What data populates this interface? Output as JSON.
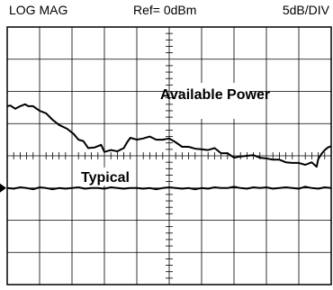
{
  "header": {
    "mode": "LOG MAG",
    "reference": "Ref= 0dBm",
    "scale": "5dB/DIV"
  },
  "chart_data": {
    "type": "line",
    "xlabel": "",
    "ylabel": "",
    "x_divisions": 10,
    "y_divisions": 8,
    "ylim": [
      -40,
      0
    ],
    "y_per_div_db": 5,
    "reference_level_dbm": 0,
    "grid": true,
    "center_crosshair": true,
    "reference_marker": -25,
    "annotations": [
      {
        "text": "Available Power",
        "series": "available"
      },
      {
        "text": "Typical",
        "series": "typical"
      }
    ],
    "series": [
      {
        "id": "available",
        "color": "#000000",
        "x": [
          0,
          0.1,
          0.25,
          0.4,
          0.55,
          0.65,
          0.8,
          1.0,
          1.2,
          1.4,
          1.6,
          1.85,
          2.05,
          2.2,
          2.35,
          2.5,
          2.7,
          2.9,
          3.0,
          3.2,
          3.4,
          3.6,
          3.7,
          3.8,
          4.0,
          4.2,
          4.4,
          4.6,
          4.8,
          5.0,
          5.2,
          5.4,
          5.6,
          5.8,
          6.0,
          6.2,
          6.4,
          6.6,
          6.8,
          7.0,
          7.2,
          7.4,
          7.6,
          7.8,
          8.0,
          8.2,
          8.4,
          8.6,
          8.8,
          9.0,
          9.2,
          9.4,
          9.55,
          9.6,
          9.7,
          9.8,
          9.9,
          10.0
        ],
        "y": [
          -12.3,
          -12.2,
          -12.7,
          -12.3,
          -12.0,
          -12.3,
          -12.3,
          -13.0,
          -13.4,
          -14.4,
          -15.2,
          -15.8,
          -16.6,
          -17.5,
          -17.7,
          -18.8,
          -18.7,
          -18.3,
          -19.4,
          -19.1,
          -19.3,
          -18.8,
          -17.9,
          -17.2,
          -17.5,
          -17.3,
          -17.0,
          -17.5,
          -17.5,
          -17.3,
          -17.9,
          -18.6,
          -18.6,
          -18.9,
          -19.0,
          -19.1,
          -18.8,
          -19.6,
          -19.6,
          -20.3,
          -20.1,
          -20.0,
          -19.9,
          -20.3,
          -20.4,
          -20.6,
          -20.6,
          -21.0,
          -21.1,
          -21.1,
          -21.4,
          -21.0,
          -21.7,
          -20.5,
          -19.7,
          -19.1,
          -18.7,
          -18.5
        ]
      },
      {
        "id": "typical",
        "color": "#000000",
        "x": [
          0,
          0.2,
          0.4,
          0.6,
          0.8,
          1.0,
          1.2,
          1.4,
          1.6,
          1.8,
          2.0,
          2.2,
          2.4,
          2.6,
          2.8,
          3.0,
          3.2,
          3.4,
          3.6,
          3.8,
          4.0,
          4.2,
          4.4,
          4.6,
          4.8,
          5.0,
          5.2,
          5.4,
          5.6,
          5.8,
          6.0,
          6.2,
          6.4,
          6.6,
          6.8,
          7.0,
          7.2,
          7.4,
          7.6,
          7.8,
          8.0,
          8.2,
          8.4,
          8.6,
          8.8,
          9.0,
          9.2,
          9.4,
          9.6,
          9.8,
          10.0
        ],
        "y": [
          -25.0,
          -25.1,
          -24.9,
          -25.0,
          -25.2,
          -24.9,
          -25.0,
          -25.2,
          -25.0,
          -25.1,
          -25.0,
          -24.9,
          -25.1,
          -25.0,
          -25.0,
          -25.1,
          -24.9,
          -25.0,
          -25.1,
          -25.0,
          -25.0,
          -25.1,
          -25.0,
          -25.2,
          -25.0,
          -24.9,
          -25.0,
          -25.1,
          -25.0,
          -25.2,
          -25.0,
          -25.1,
          -24.9,
          -25.0,
          -25.0,
          -24.8,
          -25.0,
          -25.1,
          -24.9,
          -25.0,
          -24.9,
          -25.1,
          -25.0,
          -24.9,
          -25.0,
          -25.1,
          -24.8,
          -25.0,
          -25.1,
          -24.9,
          -25.0
        ]
      }
    ]
  }
}
